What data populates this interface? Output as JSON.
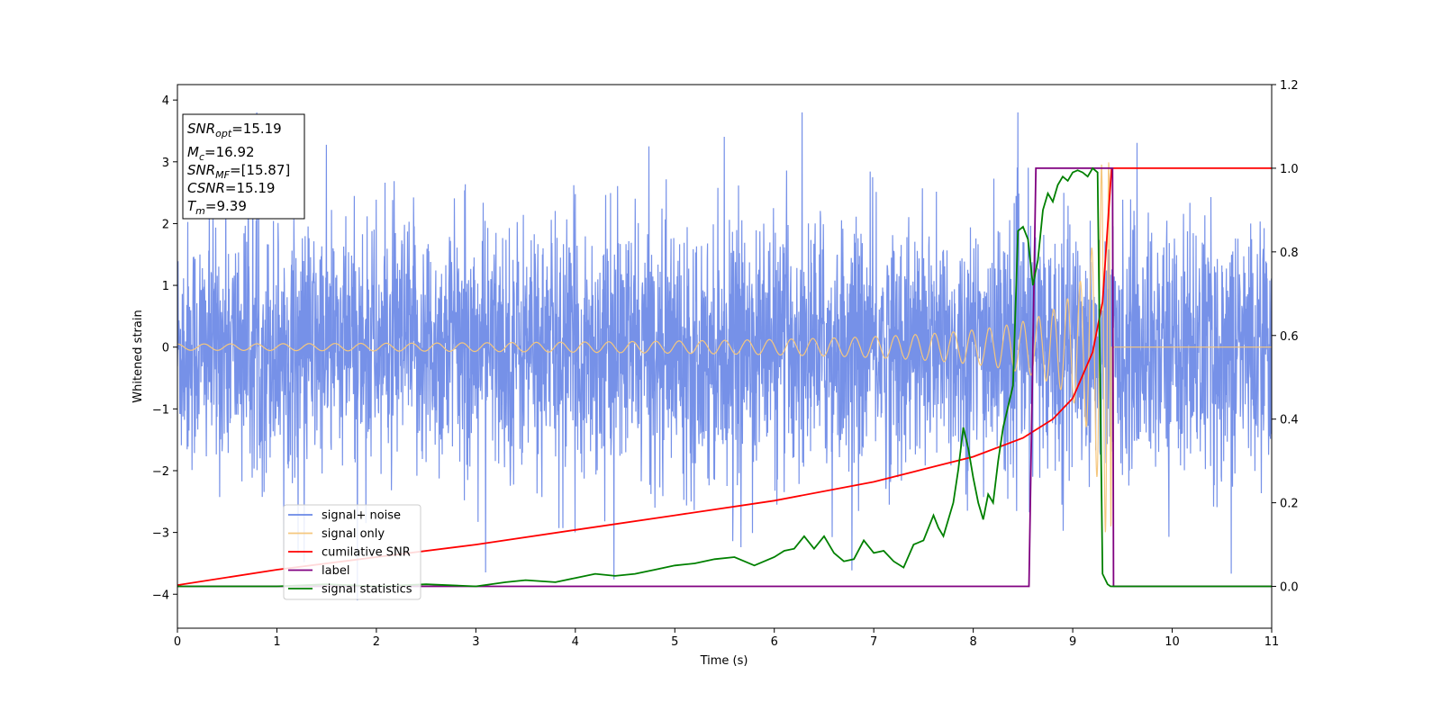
{
  "chart_data": {
    "type": "line",
    "xlabel": "Time (s)",
    "ylabel": "Whitened strain",
    "xlim": [
      0,
      11
    ],
    "ylim": [
      -4.55,
      4.25
    ],
    "y2lim": [
      -0.1,
      1.2
    ],
    "xticks": [
      "0",
      "1",
      "2",
      "3",
      "4",
      "5",
      "6",
      "7",
      "8",
      "9",
      "10",
      "11"
    ],
    "yticks": [
      "4",
      "3",
      "2",
      "1",
      "0",
      "−1",
      "−2",
      "−3",
      "−4"
    ],
    "y2ticks": [
      "1.2",
      "1.0",
      "0.8",
      "0.6",
      "0.4",
      "0.2",
      "0.0"
    ],
    "grid": false,
    "legend_position": "lower-left",
    "annotation": {
      "snr_opt": {
        "base": "SNR",
        "sub": "opt",
        "value": "=15.19"
      },
      "mc": {
        "base": "M",
        "sub": "c",
        "value": "=16.92"
      },
      "snr_mf": {
        "base": "SNR",
        "sub": "MF",
        "value": "=[15.87]"
      },
      "csnr": {
        "base": "CSNR",
        "value": "=15.19"
      },
      "tm": {
        "base": "T",
        "sub": "m",
        "value": "=9.39"
      }
    },
    "series": [
      {
        "name": "signal+ noise",
        "axis": "left",
        "color": "#6a88e6",
        "kind": "noise",
        "noise_std": 1.0,
        "x_range": [
          0,
          11
        ]
      },
      {
        "name": "signal only",
        "axis": "left",
        "color": "#f5c77e",
        "kind": "chirp",
        "t_merger": 9.39,
        "amplitude_range": [
          0.05,
          3.0
        ]
      },
      {
        "name": "cumilative SNR",
        "axis": "right",
        "color": "#ff0000",
        "x": [
          0,
          1,
          2,
          3,
          4,
          5,
          6,
          7,
          7.5,
          8,
          8.5,
          8.8,
          9.0,
          9.2,
          9.3,
          9.39,
          11
        ],
        "values": [
          0.003,
          0.04,
          0.07,
          0.1,
          0.135,
          0.17,
          0.205,
          0.25,
          0.28,
          0.31,
          0.355,
          0.4,
          0.45,
          0.56,
          0.68,
          1.0,
          1.0
        ]
      },
      {
        "name": "label",
        "axis": "right",
        "color": "#800080",
        "x": [
          0,
          8.56,
          8.63,
          9.4,
          9.41,
          11
        ],
        "values": [
          0.0,
          0.0,
          1.0,
          1.0,
          0.0,
          0.0
        ]
      },
      {
        "name": "signal statistics",
        "axis": "right",
        "color": "#008000",
        "x": [
          0,
          0.5,
          1,
          1.5,
          2,
          2.5,
          3,
          3.3,
          3.5,
          3.8,
          4,
          4.2,
          4.4,
          4.6,
          4.8,
          5,
          5.2,
          5.4,
          5.6,
          5.8,
          6,
          6.1,
          6.2,
          6.3,
          6.4,
          6.5,
          6.6,
          6.7,
          6.8,
          6.9,
          7,
          7.1,
          7.2,
          7.3,
          7.4,
          7.5,
          7.6,
          7.65,
          7.7,
          7.8,
          7.85,
          7.9,
          7.95,
          8,
          8.05,
          8.1,
          8.15,
          8.2,
          8.25,
          8.3,
          8.4,
          8.45,
          8.5,
          8.55,
          8.6,
          8.65,
          8.7,
          8.75,
          8.8,
          8.85,
          8.9,
          8.95,
          9.0,
          9.05,
          9.1,
          9.15,
          9.2,
          9.25,
          9.3,
          9.35,
          9.38,
          9.4,
          9.45,
          9.5,
          10,
          11
        ],
        "values": [
          0.0,
          0.0,
          0.0,
          0.005,
          0.0,
          0.005,
          0.0,
          0.01,
          0.015,
          0.01,
          0.02,
          0.03,
          0.025,
          0.03,
          0.04,
          0.05,
          0.055,
          0.065,
          0.07,
          0.05,
          0.07,
          0.085,
          0.09,
          0.12,
          0.09,
          0.12,
          0.08,
          0.06,
          0.065,
          0.11,
          0.08,
          0.085,
          0.06,
          0.045,
          0.1,
          0.11,
          0.17,
          0.14,
          0.12,
          0.2,
          0.28,
          0.38,
          0.33,
          0.26,
          0.2,
          0.16,
          0.22,
          0.2,
          0.3,
          0.38,
          0.48,
          0.85,
          0.86,
          0.83,
          0.72,
          0.78,
          0.9,
          0.94,
          0.92,
          0.96,
          0.98,
          0.97,
          0.99,
          0.995,
          0.99,
          0.98,
          1.0,
          0.99,
          0.03,
          0.005,
          0.0,
          0.0,
          0.0,
          0.0,
          0.0,
          0.0
        ]
      }
    ]
  }
}
